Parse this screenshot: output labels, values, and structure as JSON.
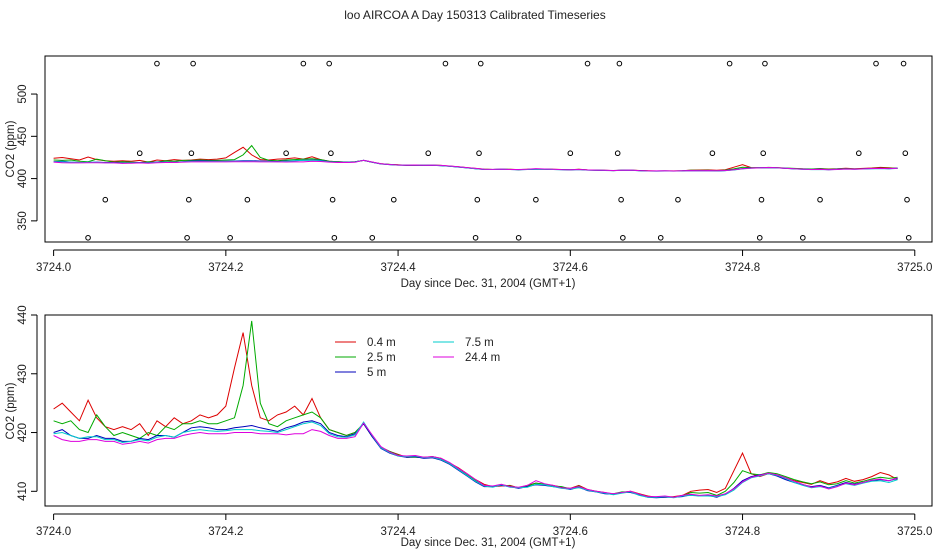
{
  "page_title": "loo AIRCOA A  Day 150313  Calibrated Timeseries",
  "chart_data": [
    {
      "type": "scatter+line",
      "panel": "top",
      "xlabel": "Day since Dec. 31, 2004 (GMT+1)",
      "ylabel": "CO2 (ppm)",
      "xlim": [
        3723.99,
        3725.02
      ],
      "ylim": [
        325,
        545
      ],
      "xticks": [
        "3724.0",
        "3724.2",
        "3724.4",
        "3724.6",
        "3724.8",
        "3725.0"
      ],
      "xtick_values": [
        3724.0,
        3724.2,
        3724.4,
        3724.6,
        3724.8,
        3725.0
      ],
      "yticks": [
        "350",
        "400",
        "450",
        "500"
      ],
      "ytick_values": [
        350,
        400,
        450,
        500
      ],
      "calibration_points": [
        {
          "x": 3724.04,
          "y": 330
        },
        {
          "x": 3724.06,
          "y": 375
        },
        {
          "x": 3724.1,
          "y": 430
        },
        {
          "x": 3724.12,
          "y": 536
        },
        {
          "x": 3724.155,
          "y": 330
        },
        {
          "x": 3724.157,
          "y": 375
        },
        {
          "x": 3724.16,
          "y": 430
        },
        {
          "x": 3724.162,
          "y": 536
        },
        {
          "x": 3724.205,
          "y": 330
        },
        {
          "x": 3724.225,
          "y": 375
        },
        {
          "x": 3724.27,
          "y": 430
        },
        {
          "x": 3724.29,
          "y": 536
        },
        {
          "x": 3724.32,
          "y": 536
        },
        {
          "x": 3724.322,
          "y": 430
        },
        {
          "x": 3724.324,
          "y": 375
        },
        {
          "x": 3724.326,
          "y": 330
        },
        {
          "x": 3724.37,
          "y": 330
        },
        {
          "x": 3724.395,
          "y": 375
        },
        {
          "x": 3724.435,
          "y": 430
        },
        {
          "x": 3724.455,
          "y": 536
        },
        {
          "x": 3724.49,
          "y": 330
        },
        {
          "x": 3724.492,
          "y": 375
        },
        {
          "x": 3724.494,
          "y": 430
        },
        {
          "x": 3724.496,
          "y": 536
        },
        {
          "x": 3724.54,
          "y": 330
        },
        {
          "x": 3724.56,
          "y": 375
        },
        {
          "x": 3724.6,
          "y": 430
        },
        {
          "x": 3724.62,
          "y": 536
        },
        {
          "x": 3724.655,
          "y": 430
        },
        {
          "x": 3724.657,
          "y": 536
        },
        {
          "x": 3724.659,
          "y": 375
        },
        {
          "x": 3724.661,
          "y": 330
        },
        {
          "x": 3724.705,
          "y": 330
        },
        {
          "x": 3724.725,
          "y": 375
        },
        {
          "x": 3724.765,
          "y": 430
        },
        {
          "x": 3724.785,
          "y": 536
        },
        {
          "x": 3724.82,
          "y": 330
        },
        {
          "x": 3724.822,
          "y": 375
        },
        {
          "x": 3724.824,
          "y": 430
        },
        {
          "x": 3724.826,
          "y": 536
        },
        {
          "x": 3724.87,
          "y": 330
        },
        {
          "x": 3724.89,
          "y": 375
        },
        {
          "x": 3724.935,
          "y": 430
        },
        {
          "x": 3724.955,
          "y": 536
        },
        {
          "x": 3724.987,
          "y": 536
        },
        {
          "x": 3724.989,
          "y": 430
        },
        {
          "x": 3724.991,
          "y": 375
        },
        {
          "x": 3724.993,
          "y": 330
        }
      ]
    },
    {
      "type": "line",
      "panel": "bottom",
      "xlabel": "Day since Dec. 31, 2004 (GMT+1)",
      "ylabel": "CO2 (ppm)",
      "xlim": [
        3723.99,
        3725.02
      ],
      "ylim": [
        407.5,
        440
      ],
      "xticks": [
        "3724.0",
        "3724.2",
        "3724.4",
        "3724.6",
        "3724.8",
        "3725.0"
      ],
      "xtick_values": [
        3724.0,
        3724.2,
        3724.4,
        3724.6,
        3724.8,
        3725.0
      ],
      "yticks": [
        "410",
        "420",
        "430",
        "440"
      ],
      "ytick_values": [
        410,
        420,
        430,
        440
      ],
      "x": [
        3724.0,
        3724.01,
        3724.02,
        3724.03,
        3724.04,
        3724.05,
        3724.06,
        3724.07,
        3724.08,
        3724.09,
        3724.1,
        3724.11,
        3724.12,
        3724.13,
        3724.14,
        3724.15,
        3724.16,
        3724.17,
        3724.18,
        3724.19,
        3724.2,
        3724.21,
        3724.22,
        3724.23,
        3724.24,
        3724.25,
        3724.26,
        3724.27,
        3724.28,
        3724.29,
        3724.3,
        3724.31,
        3724.32,
        3724.33,
        3724.34,
        3724.35,
        3724.36,
        3724.37,
        3724.38,
        3724.39,
        3724.4,
        3724.41,
        3724.42,
        3724.43,
        3724.44,
        3724.45,
        3724.46,
        3724.47,
        3724.48,
        3724.49,
        3724.5,
        3724.51,
        3724.52,
        3724.53,
        3724.54,
        3724.55,
        3724.56,
        3724.57,
        3724.58,
        3724.59,
        3724.6,
        3724.61,
        3724.62,
        3724.63,
        3724.64,
        3724.65,
        3724.66,
        3724.67,
        3724.68,
        3724.69,
        3724.7,
        3724.71,
        3724.72,
        3724.73,
        3724.74,
        3724.75,
        3724.76,
        3724.77,
        3724.78,
        3724.79,
        3724.8,
        3724.81,
        3724.82,
        3724.83,
        3724.84,
        3724.85,
        3724.86,
        3724.87,
        3724.88,
        3724.89,
        3724.9,
        3724.91,
        3724.92,
        3724.93,
        3724.94,
        3724.95,
        3724.96,
        3724.97,
        3724.98
      ],
      "series": [
        {
          "name": "0.4 m",
          "color": "#dd0000",
          "values": [
            424.0,
            425.0,
            423.5,
            422.0,
            425.5,
            422.5,
            421.0,
            420.5,
            421.0,
            420.5,
            421.5,
            419.5,
            422.0,
            421.0,
            422.5,
            421.5,
            422.0,
            423.0,
            422.5,
            423.0,
            424.5,
            431.0,
            437.0,
            428.0,
            422.5,
            422.0,
            423.0,
            423.5,
            424.5,
            423.0,
            425.8,
            422.5,
            420.5,
            420.0,
            419.5,
            420.0,
            421.5,
            419.5,
            417.5,
            416.8,
            416.3,
            415.8,
            415.9,
            415.8,
            415.9,
            415.6,
            414.8,
            414.0,
            413.0,
            412.0,
            411.2,
            410.8,
            410.9,
            411.0,
            410.6,
            411.0,
            411.4,
            411.2,
            411.0,
            410.7,
            410.5,
            411.0,
            410.3,
            410.0,
            409.8,
            409.5,
            409.8,
            410.0,
            409.6,
            409.2,
            409.0,
            409.0,
            409.1,
            409.3,
            410.0,
            410.2,
            410.3,
            409.8,
            410.5,
            413.5,
            416.5,
            413.0,
            412.5,
            413.0,
            412.8,
            412.3,
            411.8,
            411.5,
            411.2,
            411.8,
            411.3,
            411.6,
            412.2,
            411.7,
            412.0,
            412.5,
            413.2,
            412.8,
            412.0
          ]
        },
        {
          "name": "2.5 m",
          "color": "#00aa00",
          "values": [
            422.0,
            421.5,
            422.0,
            420.5,
            420.0,
            423.0,
            421.0,
            419.5,
            420.0,
            419.5,
            419.0,
            420.0,
            419.5,
            421.0,
            420.5,
            421.5,
            421.5,
            422.0,
            421.5,
            421.5,
            422.0,
            422.5,
            428.0,
            439.0,
            425.0,
            421.5,
            421.0,
            422.0,
            422.5,
            423.0,
            423.5,
            422.5,
            420.5,
            420.0,
            419.5,
            420.0,
            421.5,
            419.3,
            417.5,
            416.8,
            416.2,
            415.8,
            415.8,
            415.7,
            415.9,
            415.5,
            414.7,
            413.8,
            412.8,
            411.8,
            411.0,
            410.8,
            411.1,
            410.9,
            410.6,
            410.9,
            411.4,
            411.2,
            410.9,
            410.8,
            410.4,
            410.9,
            410.2,
            410.0,
            409.7,
            409.6,
            409.9,
            409.9,
            409.5,
            409.1,
            409.0,
            409.1,
            409.0,
            409.2,
            409.8,
            409.7,
            409.8,
            409.3,
            410.0,
            411.5,
            413.5,
            413.0,
            412.8,
            413.2,
            413.0,
            412.5,
            412.0,
            411.6,
            411.3,
            411.6,
            411.1,
            411.3,
            411.8,
            411.4,
            411.7,
            412.1,
            412.4,
            412.2,
            412.4
          ]
        },
        {
          "name": "5 m",
          "color": "#0000bb",
          "values": [
            420.0,
            420.5,
            419.5,
            419.0,
            419.0,
            419.5,
            419.0,
            419.0,
            418.5,
            418.5,
            419.0,
            418.8,
            419.5,
            419.5,
            419.2,
            420.0,
            420.8,
            421.0,
            420.8,
            420.5,
            420.5,
            420.8,
            421.0,
            421.2,
            420.8,
            420.5,
            420.2,
            420.8,
            421.2,
            421.8,
            422.0,
            421.5,
            420.0,
            419.5,
            419.3,
            419.8,
            421.5,
            419.3,
            417.3,
            416.5,
            416.0,
            415.8,
            415.9,
            415.6,
            415.7,
            415.3,
            414.6,
            413.6,
            412.6,
            411.6,
            410.8,
            410.8,
            411.0,
            410.8,
            410.5,
            410.8,
            411.1,
            411.0,
            410.8,
            410.6,
            410.3,
            410.7,
            410.1,
            409.9,
            409.6,
            409.5,
            409.8,
            409.8,
            409.4,
            409.0,
            408.9,
            409.0,
            409.0,
            409.1,
            409.4,
            409.2,
            409.3,
            409.0,
            409.5,
            410.5,
            411.8,
            412.5,
            412.8,
            413.0,
            412.6,
            412.0,
            411.5,
            411.1,
            410.8,
            411.0,
            410.6,
            411.0,
            411.5,
            411.2,
            411.5,
            411.8,
            412.0,
            411.8,
            412.2
          ]
        },
        {
          "name": "7.5 m",
          "color": "#00cccc",
          "values": [
            419.8,
            420.0,
            419.5,
            419.0,
            419.3,
            419.3,
            418.8,
            418.8,
            418.3,
            418.5,
            418.8,
            418.6,
            419.2,
            419.5,
            419.2,
            420.0,
            420.3,
            420.5,
            420.3,
            420.2,
            420.3,
            420.5,
            420.5,
            420.5,
            420.3,
            420.2,
            420.0,
            420.5,
            421.0,
            421.5,
            421.8,
            421.2,
            419.8,
            419.3,
            419.2,
            419.6,
            421.8,
            419.5,
            417.4,
            416.6,
            416.0,
            415.9,
            416.0,
            415.7,
            415.8,
            415.4,
            414.7,
            413.7,
            412.7,
            411.7,
            410.9,
            410.7,
            411.1,
            410.7,
            410.6,
            410.7,
            411.2,
            411.1,
            410.8,
            410.5,
            410.4,
            410.6,
            410.2,
            409.9,
            409.7,
            409.4,
            409.7,
            409.9,
            409.3,
            409.0,
            409.0,
            409.1,
            408.9,
            409.2,
            409.3,
            409.2,
            409.2,
            409.1,
            409.4,
            410.2,
            411.5,
            412.3,
            412.6,
            413.0,
            412.7,
            412.2,
            411.5,
            411.0,
            410.6,
            410.8,
            410.5,
            410.9,
            411.3,
            411.0,
            411.4,
            411.7,
            411.8,
            411.5,
            412.0
          ]
        },
        {
          "name": "24.4 m",
          "color": "#dd00dd",
          "values": [
            419.5,
            418.8,
            418.5,
            418.5,
            418.8,
            418.8,
            418.5,
            418.5,
            418.0,
            418.2,
            418.5,
            418.2,
            418.8,
            419.0,
            419.0,
            419.5,
            419.8,
            420.0,
            419.8,
            419.8,
            419.8,
            420.0,
            420.0,
            420.0,
            419.8,
            419.8,
            419.8,
            419.6,
            419.8,
            419.8,
            420.5,
            420.2,
            419.5,
            419.0,
            419.0,
            419.3,
            421.6,
            419.6,
            417.6,
            416.7,
            416.1,
            416.0,
            416.1,
            415.8,
            415.9,
            415.6,
            414.9,
            413.9,
            413.0,
            412.0,
            411.0,
            410.9,
            411.2,
            410.8,
            410.7,
            411.0,
            411.8,
            411.3,
            411.0,
            410.6,
            410.5,
            410.8,
            410.3,
            410.0,
            409.8,
            409.6,
            409.8,
            410.0,
            409.5,
            409.1,
            409.1,
            409.2,
            409.0,
            409.3,
            409.5,
            409.3,
            409.4,
            409.2,
            409.6,
            410.4,
            411.6,
            412.4,
            412.7,
            413.1,
            412.8,
            412.3,
            411.7,
            411.2,
            410.7,
            410.9,
            410.4,
            410.8,
            411.4,
            411.1,
            411.5,
            411.9,
            412.1,
            411.8,
            412.3
          ]
        }
      ],
      "legend": [
        "0.4 m",
        "2.5 m",
        "5 m",
        "7.5 m",
        "24.4 m"
      ],
      "legend_position": "top-left"
    }
  ]
}
